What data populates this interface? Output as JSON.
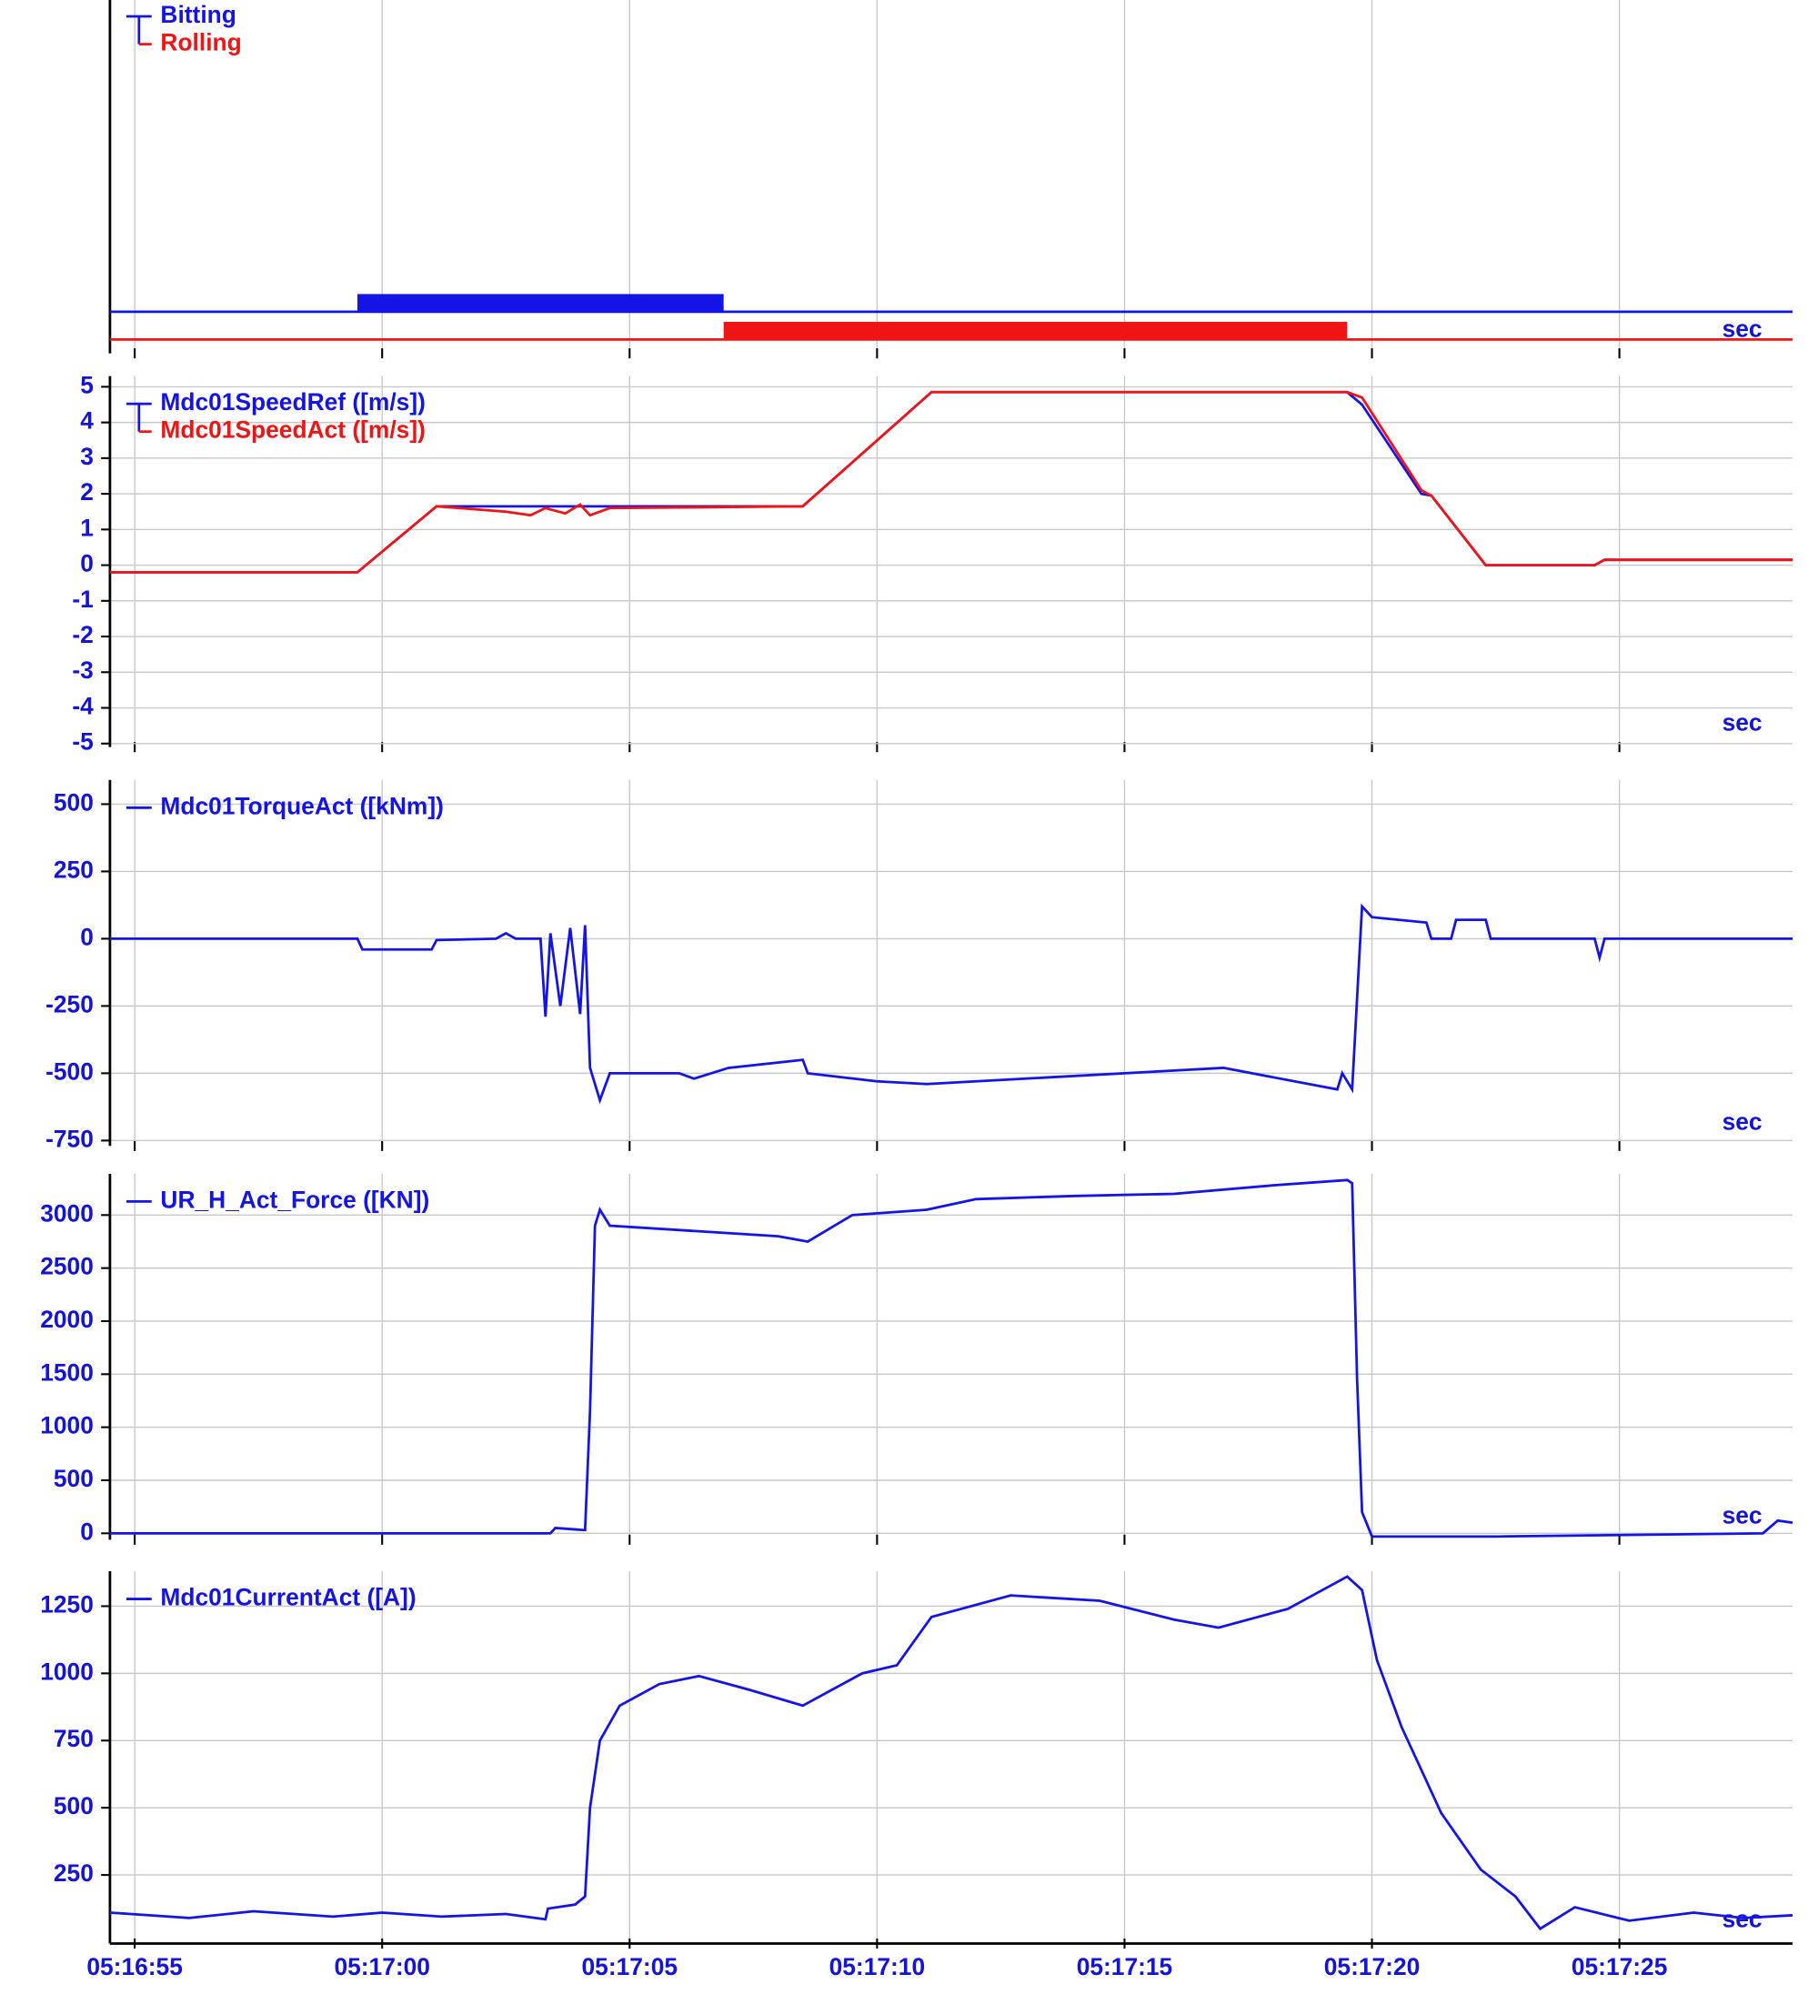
{
  "chart_data": [
    {
      "type": "step",
      "xlabel": "sec",
      "x": [
        19014.5,
        19019.5,
        19026.9,
        19039.5
      ],
      "series": [
        {
          "name": "Bitting",
          "color": "#1414e6",
          "values": [
            0,
            1,
            0,
            0
          ]
        },
        {
          "name": "Rolling",
          "color": "#f01414",
          "values": [
            0,
            0,
            1,
            0
          ]
        }
      ]
    },
    {
      "type": "line",
      "xlabel": "sec",
      "grid": true,
      "ylim": [
        -5.1,
        5.3
      ],
      "yticks": [
        -5,
        -4,
        -3,
        -2,
        -1,
        0,
        1,
        2,
        3,
        4,
        5
      ],
      "x": [
        19014.5,
        19019.5,
        19021.1,
        19022.5,
        19023.0,
        19023.3,
        19023.7,
        19024.0,
        19024.2,
        19024.6,
        19028.5,
        19031.1,
        19039.5,
        19039.8,
        19041.0,
        19041.2,
        19042.3,
        19044.5,
        19044.7,
        19048.5
      ],
      "series": [
        {
          "name": "Mdc01SpeedRef ([m/s])",
          "color": "#1414e6",
          "values": [
            -0.2,
            -0.2,
            1.65,
            1.65,
            1.65,
            1.65,
            1.65,
            1.65,
            1.65,
            1.65,
            1.65,
            4.85,
            4.85,
            4.5,
            2.0,
            1.95,
            0,
            0,
            0.15,
            0.15
          ]
        },
        {
          "name": "Mdc01SpeedAct ([m/s])",
          "color": "#f01414",
          "values": [
            -0.2,
            -0.2,
            1.65,
            1.5,
            1.4,
            1.6,
            1.45,
            1.7,
            1.4,
            1.6,
            1.65,
            4.85,
            4.85,
            4.7,
            2.1,
            1.95,
            0,
            0,
            0.15,
            0.15
          ]
        }
      ]
    },
    {
      "type": "line",
      "xlabel": "sec",
      "grid": true,
      "ylim": [
        -770,
        590
      ],
      "yticks": [
        -750,
        -500,
        -250,
        0,
        250,
        500
      ],
      "x": [
        19014.5,
        19019.5,
        19019.6,
        19021.0,
        19021.1,
        19022.3,
        19022.5,
        19022.7,
        19023.2,
        19023.3,
        19023.4,
        19023.6,
        19023.8,
        19024.0,
        19024.1,
        19024.2,
        19024.4,
        19024.6,
        19026.0,
        19026.3,
        19027.0,
        19028.5,
        19028.6,
        19030.0,
        19031.0,
        19033.0,
        19036.0,
        19037.0,
        19039.3,
        19039.4,
        19039.6,
        19039.8,
        19040.0,
        19041.1,
        19041.2,
        19041.6,
        19041.7,
        19042.3,
        19042.4,
        19044.5,
        19044.6,
        19044.7,
        19048.5
      ],
      "series": [
        {
          "name": "Mdc01TorqueAct ([kNm])",
          "color": "#1414e6",
          "values": [
            0,
            0,
            -40,
            -40,
            -5,
            0,
            20,
            0,
            0,
            -290,
            20,
            -250,
            40,
            -280,
            50,
            -480,
            -600,
            -500,
            -500,
            -520,
            -480,
            -450,
            -500,
            -530,
            -540,
            -520,
            -490,
            -480,
            -560,
            -500,
            -560,
            120,
            80,
            60,
            0,
            0,
            70,
            70,
            0,
            0,
            -70,
            0,
            0
          ]
        }
      ]
    },
    {
      "type": "line",
      "xlabel": "sec",
      "grid": true,
      "ylim": [
        -60,
        3390
      ],
      "yticks": [
        0,
        500,
        1000,
        1500,
        2000,
        2500,
        3000
      ],
      "x": [
        19014.5,
        19023.4,
        19023.5,
        19024.1,
        19024.2,
        19024.3,
        19024.4,
        19024.6,
        19028.0,
        19028.6,
        19029.5,
        19031.0,
        19032.0,
        19034.0,
        19036.0,
        19038.0,
        19039.5,
        19039.6,
        19039.7,
        19039.8,
        19040.0,
        19042.5,
        19047.9,
        19048.2,
        19048.5
      ],
      "series": [
        {
          "name": "UR_H_Act_Force ([KN])",
          "color": "#1414e6",
          "values": [
            0,
            0,
            50,
            30,
            1150,
            2900,
            3050,
            2900,
            2800,
            2750,
            3000,
            3050,
            3150,
            3180,
            3200,
            3280,
            3330,
            3300,
            1450,
            200,
            -30,
            -30,
            0,
            120,
            100
          ]
        }
      ]
    },
    {
      "type": "line",
      "xlabel": "sec",
      "grid": true,
      "ylim": [
        -5,
        1380
      ],
      "yticks": [
        250,
        500,
        750,
        1000,
        1250
      ],
      "xlim": [
        19014.5,
        19048.5
      ],
      "xticks": [
        {
          "value": 19015,
          "label": "05:16:55"
        },
        {
          "value": 19020,
          "label": "05:17:00"
        },
        {
          "value": 19025,
          "label": "05:17:05"
        },
        {
          "value": 19030,
          "label": "05:17:10"
        },
        {
          "value": 19035,
          "label": "05:17:15"
        },
        {
          "value": 19040,
          "label": "05:17:20"
        },
        {
          "value": 19045,
          "label": "05:17:25"
        }
      ],
      "x": [
        19014.5,
        19016.1,
        19017.4,
        19019.0,
        19020.0,
        19021.2,
        19022.5,
        19023.3,
        19023.35,
        19023.9,
        19024.1,
        19024.2,
        19024.4,
        19024.8,
        19025.6,
        19026.4,
        19027.4,
        19028.5,
        19029.7,
        19030.4,
        19031.1,
        19032.7,
        19034.5,
        19036.0,
        19036.9,
        19038.3,
        19039.5,
        19039.8,
        19040.1,
        19040.6,
        19041.4,
        19042.2,
        19042.9,
        19043.4,
        19044.1,
        19045.2,
        19046.5,
        19047.5,
        19048.5
      ],
      "series": [
        {
          "name": "Mdc01CurrentAct ([A])",
          "color": "#1414e6",
          "values": [
            110,
            90,
            115,
            95,
            110,
            95,
            105,
            85,
            125,
            140,
            170,
            500,
            750,
            880,
            960,
            990,
            940,
            880,
            1000,
            1030,
            1210,
            1290,
            1270,
            1200,
            1170,
            1240,
            1360,
            1310,
            1050,
            800,
            480,
            270,
            170,
            50,
            130,
            80,
            110,
            90,
            100
          ]
        }
      ]
    }
  ]
}
